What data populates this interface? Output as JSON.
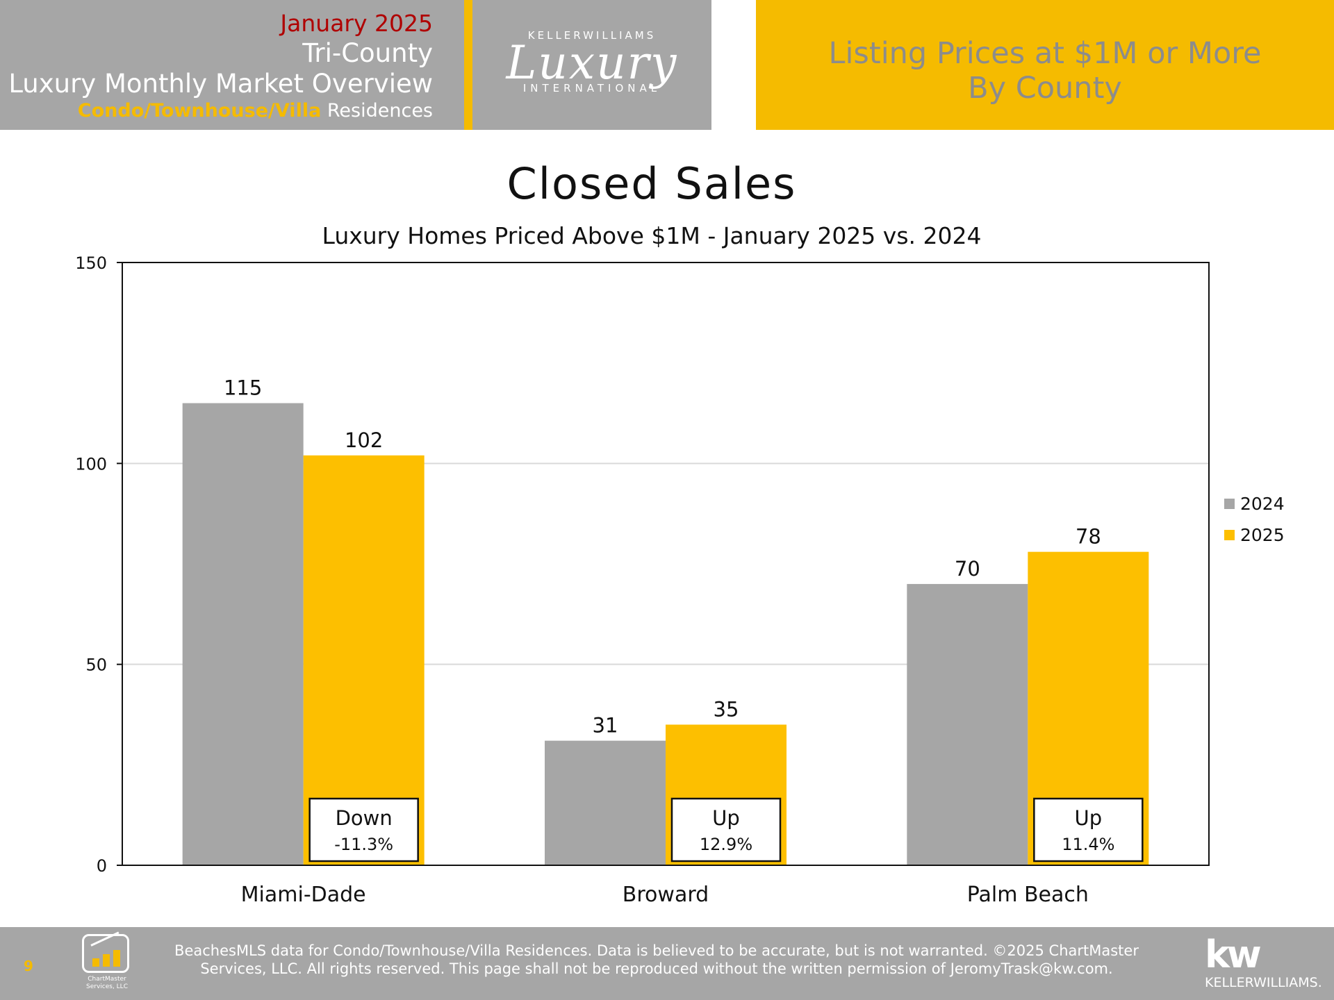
{
  "header": {
    "month": "January 2025",
    "region": "Tri-County",
    "overview": "Luxury Monthly Market Overview",
    "type_accent": "Condo/Townhouse/Villa",
    "type_rest": " Residences",
    "logo_top": "KELLERWILLIAMS",
    "logo_script": "Luxury",
    "logo_bottom": "INTERNATIONAL",
    "right_line1": "Listing Prices at $1M or More",
    "right_line2": "By County"
  },
  "chart_data": {
    "type": "bar",
    "title": "Closed Sales",
    "subtitle": "Luxury Homes Priced Above $1M - January 2025 vs. 2024",
    "categories": [
      "Miami-Dade",
      "Broward",
      "Palm Beach"
    ],
    "series": [
      {
        "name": "2024",
        "values": [
          115,
          31,
          70
        ],
        "color": "#a6a6a6"
      },
      {
        "name": "2025",
        "values": [
          102,
          35,
          78
        ],
        "color": "#fdbf00"
      }
    ],
    "ylim": [
      0,
      150
    ],
    "yticks": [
      0,
      50,
      100,
      150
    ],
    "grid": true,
    "legend": "right",
    "annotations": [
      {
        "direction": "Down",
        "change": "-11.3%"
      },
      {
        "direction": "Up",
        "change": "12.9%"
      },
      {
        "direction": "Up",
        "change": "11.4%"
      }
    ]
  },
  "footer": {
    "page_number": "9",
    "chartmaster_line1": "ChartMaster",
    "chartmaster_line2": "Services, LLC",
    "disclaimer_line1": "BeachesMLS data for Condo/Townhouse/Villa Residences.  Data is believed to be accurate, but is not warranted.   ©2025  ChartMaster",
    "disclaimer_line2": "Services, LLC.  All rights reserved. This page shall not be reproduced without the written permission of JeromyTrask@kw.com.",
    "kw_big": "kw",
    "kw_small": "KELLERWILLIAMS."
  },
  "colors": {
    "gray": "#a6a6a6",
    "gold": "#f5bb00",
    "red": "#b00000"
  }
}
